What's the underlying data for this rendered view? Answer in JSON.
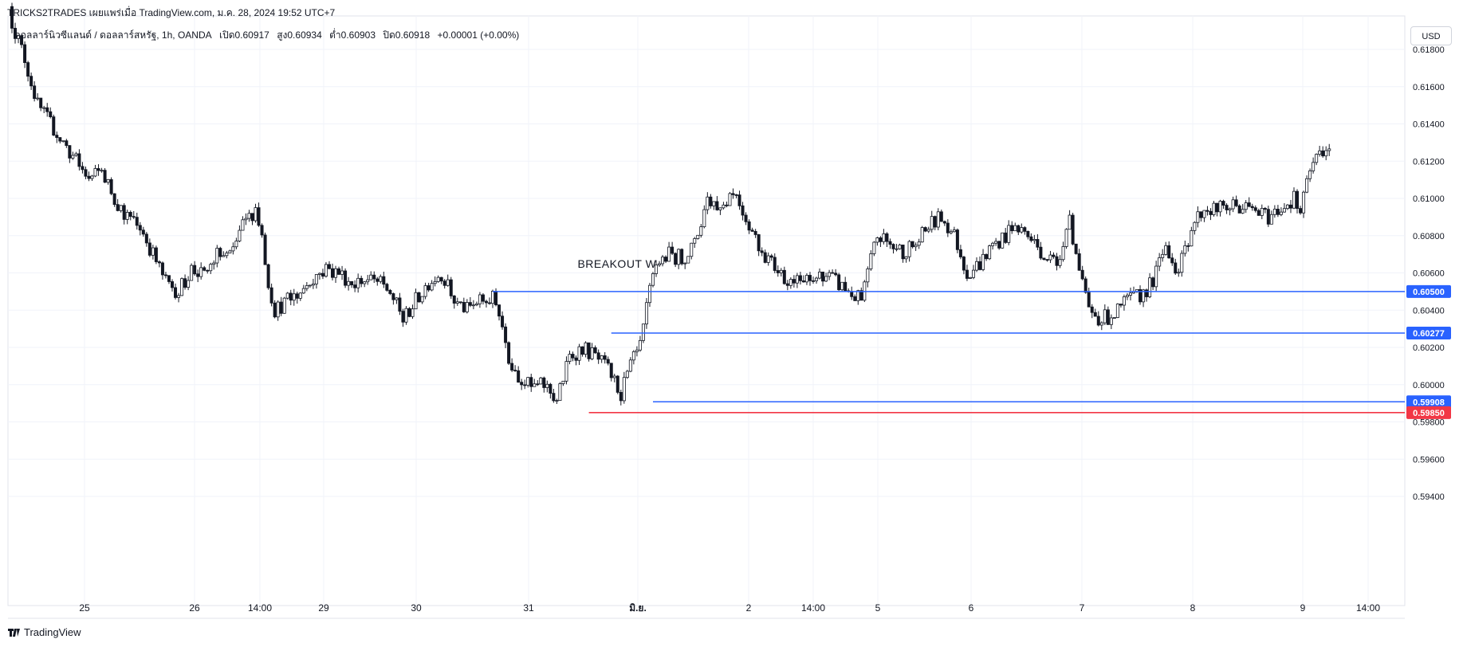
{
  "header": {
    "attribution": "TRICKS2TRADES เผยแพร่เมื่อ TradingView.com, ม.ค. 28, 2024 19:52 UTC+7",
    "symbol": "ดอลลาร์นิวซีแลนด์ / ดอลลาร์สหรัฐ, 1h, OANDA",
    "open": "เปิด0.60917",
    "high": "สูง0.60934",
    "low": "ต่ำ0.60903",
    "close": "ปิด0.60918",
    "change": "+0.00001 (+0.00%)"
  },
  "currency_button": "USD",
  "footer": {
    "brand": "TradingView"
  },
  "colors": {
    "support_line": "#2962ff",
    "stop_line": "#f23645",
    "candle": "#131722",
    "grid": "#f0f3fa"
  },
  "chart_data": {
    "type": "candlestick",
    "title": "",
    "y_axis": {
      "range": [
        0.593,
        0.62
      ],
      "ticks": [
        "0.61800",
        "0.61600",
        "0.61400",
        "0.61200",
        "0.61000",
        "0.60800",
        "0.60600",
        "0.60400",
        "0.60200",
        "0.60000",
        "0.59800",
        "0.59600",
        "0.59400"
      ]
    },
    "x_axis": {
      "ticks": [
        "25",
        "26",
        "14:00",
        "29",
        "30",
        "31",
        "มิ.ย.",
        "2",
        "14:00",
        "5",
        "6",
        "7",
        "8",
        "9",
        "14:00"
      ]
    },
    "close_path": [
      [
        0,
        0.6195
      ],
      [
        4,
        0.6175
      ],
      [
        8,
        0.615
      ],
      [
        12,
        0.614
      ],
      [
        16,
        0.613
      ],
      [
        20,
        0.612
      ],
      [
        24,
        0.611
      ],
      [
        28,
        0.6115
      ],
      [
        32,
        0.61
      ],
      [
        36,
        0.609
      ],
      [
        40,
        0.6085
      ],
      [
        44,
        0.607
      ],
      [
        48,
        0.6055
      ],
      [
        52,
        0.605
      ],
      [
        56,
        0.6062
      ],
      [
        60,
        0.6058
      ],
      [
        64,
        0.607
      ],
      [
        68,
        0.6068
      ],
      [
        72,
        0.6085
      ],
      [
        76,
        0.6095
      ],
      [
        78,
        0.608
      ],
      [
        80,
        0.6055
      ],
      [
        82,
        0.604
      ],
      [
        86,
        0.6045
      ],
      [
        90,
        0.605
      ],
      [
        94,
        0.6058
      ],
      [
        98,
        0.6062
      ],
      [
        102,
        0.606
      ],
      [
        106,
        0.6055
      ],
      [
        110,
        0.6056
      ],
      [
        114,
        0.6055
      ],
      [
        118,
        0.605
      ],
      [
        122,
        0.6035
      ],
      [
        126,
        0.6045
      ],
      [
        130,
        0.6055
      ],
      [
        134,
        0.606
      ],
      [
        138,
        0.6045
      ],
      [
        142,
        0.604
      ],
      [
        146,
        0.6045
      ],
      [
        150,
        0.6046
      ],
      [
        152,
        0.604
      ],
      [
        155,
        0.6015
      ],
      [
        158,
        0.6005
      ],
      [
        162,
        0.5998
      ],
      [
        166,
        0.6
      ],
      [
        170,
        0.5992
      ],
      [
        174,
        0.6015
      ],
      [
        178,
        0.602
      ],
      [
        182,
        0.6015
      ],
      [
        186,
        0.6008
      ],
      [
        190,
        0.5995
      ],
      [
        193,
        0.601
      ],
      [
        196,
        0.602
      ],
      [
        199,
        0.605
      ],
      [
        201,
        0.6065
      ],
      [
        205,
        0.607
      ],
      [
        209,
        0.6068
      ],
      [
        213,
        0.6075
      ],
      [
        217,
        0.61
      ],
      [
        221,
        0.6095
      ],
      [
        225,
        0.6105
      ],
      [
        229,
        0.609
      ],
      [
        233,
        0.6075
      ],
      [
        237,
        0.6065
      ],
      [
        241,
        0.6058
      ],
      [
        245,
        0.6055
      ],
      [
        249,
        0.6055
      ],
      [
        253,
        0.606
      ],
      [
        257,
        0.6055
      ],
      [
        261,
        0.605
      ],
      [
        265,
        0.6045
      ],
      [
        267,
        0.606
      ],
      [
        270,
        0.608
      ],
      [
        274,
        0.6075
      ],
      [
        278,
        0.6072
      ],
      [
        282,
        0.6075
      ],
      [
        286,
        0.6085
      ],
      [
        290,
        0.609
      ],
      [
        294,
        0.608
      ],
      [
        298,
        0.606
      ],
      [
        302,
        0.6065
      ],
      [
        306,
        0.6075
      ],
      [
        310,
        0.608
      ],
      [
        314,
        0.6085
      ],
      [
        318,
        0.6078
      ],
      [
        322,
        0.607
      ],
      [
        326,
        0.6065
      ],
      [
        330,
        0.609
      ],
      [
        333,
        0.606
      ],
      [
        336,
        0.604
      ],
      [
        340,
        0.6035
      ],
      [
        344,
        0.6038
      ],
      [
        348,
        0.6045
      ],
      [
        352,
        0.6048
      ],
      [
        356,
        0.6055
      ],
      [
        360,
        0.6075
      ],
      [
        364,
        0.606
      ],
      [
        368,
        0.6085
      ],
      [
        372,
        0.6095
      ],
      [
        376,
        0.6094
      ],
      [
        380,
        0.6096
      ],
      [
        384,
        0.6095
      ],
      [
        388,
        0.6093
      ],
      [
        392,
        0.609
      ],
      [
        396,
        0.6095
      ],
      [
        400,
        0.61
      ],
      [
        402,
        0.6092
      ],
      [
        405,
        0.6115
      ],
      [
        408,
        0.6125
      ],
      [
        411,
        0.6128
      ]
    ],
    "annotations": [
      {
        "type": "text",
        "text": "BREAKOUT W",
        "at_candle": 174,
        "price": 0.6062
      },
      {
        "type": "hline",
        "price": 0.605,
        "from_candle": 150,
        "label": "0.60500",
        "color": "#2962ff"
      },
      {
        "type": "hline",
        "price": 0.60277,
        "from_candle": 187,
        "label": "0.60277",
        "color": "#2962ff"
      },
      {
        "type": "hline",
        "price": 0.59908,
        "from_candle": 200,
        "label": "0.59908",
        "color": "#2962ff"
      },
      {
        "type": "hline",
        "price": 0.5985,
        "from_candle": 180,
        "label": "0.59850",
        "color": "#f23645"
      }
    ],
    "grid": true
  }
}
